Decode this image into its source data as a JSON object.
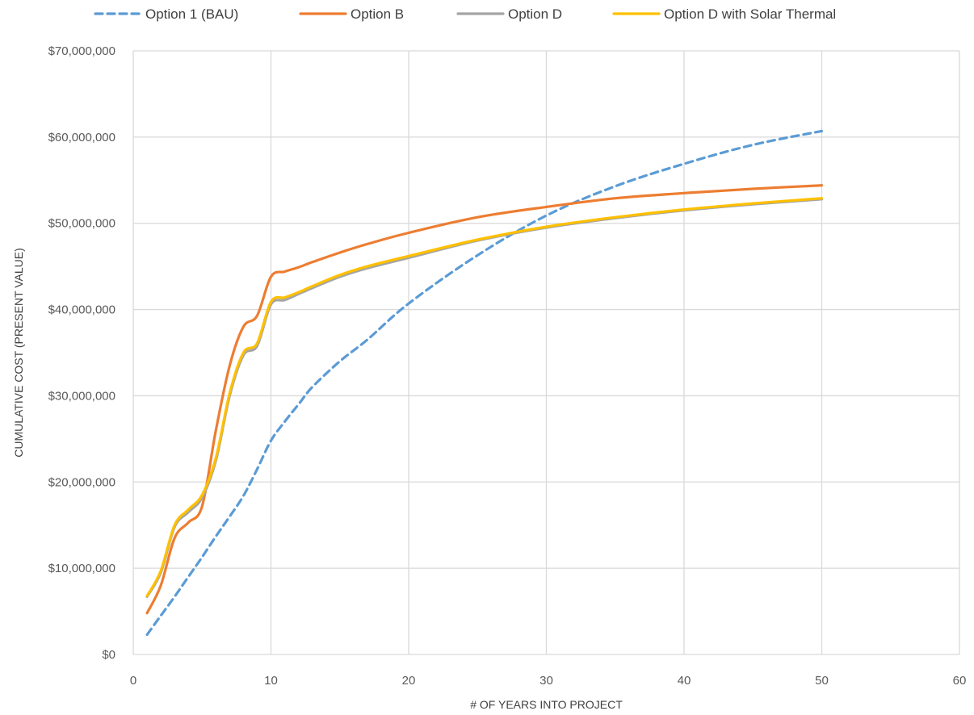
{
  "chart_data": {
    "type": "line",
    "xlabel": "# OF YEARS INTO PROJECT",
    "ylabel": "CUMULATIVE COST (PRESENT VALUE)",
    "xlim": [
      0,
      60
    ],
    "ylim": [
      0,
      70000000
    ],
    "x_ticks": [
      0,
      10,
      20,
      30,
      40,
      50,
      60
    ],
    "x_tick_labels": [
      "0",
      "10",
      "20",
      "30",
      "40",
      "50",
      "60"
    ],
    "y_ticks": [
      0,
      10000000,
      20000000,
      30000000,
      40000000,
      50000000,
      60000000,
      70000000
    ],
    "y_tick_labels": [
      "$0",
      "$10,000,000",
      "$20,000,000",
      "$30,000,000",
      "$40,000,000",
      "$50,000,000",
      "$60,000,000",
      "$70,000,000"
    ],
    "grid": "both",
    "legend_position": "top",
    "series": [
      {
        "name": "Option 1 (BAU)",
        "color": "#5b9bd5",
        "dash": true,
        "x": [
          1,
          2,
          3,
          4,
          5,
          6,
          7,
          8,
          9,
          10,
          11,
          12,
          13,
          15,
          17,
          20,
          25,
          30,
          35,
          40,
          45,
          50
        ],
        "y": [
          2300000,
          4500000,
          6700000,
          9000000,
          11300000,
          13700000,
          16000000,
          18400000,
          21500000,
          24800000,
          27000000,
          29000000,
          31000000,
          34000000,
          36500000,
          40700000,
          46300000,
          50900000,
          54300000,
          56900000,
          59100000,
          60700000
        ]
      },
      {
        "name": "Option B",
        "color": "#ed7d31",
        "dash": false,
        "x": [
          1,
          2,
          3,
          4,
          5,
          6,
          7,
          8,
          9,
          10,
          11,
          12,
          13,
          15,
          17,
          20,
          25,
          30,
          35,
          40,
          45,
          50
        ],
        "y": [
          4800000,
          8000000,
          13500000,
          15300000,
          17200000,
          26000000,
          33500000,
          38000000,
          39300000,
          43800000,
          44400000,
          44900000,
          45500000,
          46600000,
          47600000,
          48900000,
          50700000,
          51900000,
          52900000,
          53500000,
          54000000,
          54400000
        ]
      },
      {
        "name": "Option D",
        "color": "#a5a5a5",
        "dash": false,
        "x": [
          1,
          2,
          3,
          4,
          5,
          6,
          7,
          8,
          9,
          10,
          11,
          12,
          13,
          15,
          17,
          20,
          25,
          30,
          35,
          40,
          45,
          50
        ],
        "y": [
          6700000,
          9500000,
          14800000,
          16500000,
          18200000,
          22500000,
          30000000,
          34700000,
          35800000,
          40600000,
          41100000,
          41800000,
          42500000,
          43800000,
          44800000,
          46000000,
          48000000,
          49500000,
          50600000,
          51500000,
          52200000,
          52800000
        ]
      },
      {
        "name": "Option D with Solar Thermal",
        "color": "#ffc000",
        "dash": false,
        "x": [
          1,
          2,
          3,
          4,
          5,
          6,
          7,
          8,
          9,
          10,
          11,
          12,
          13,
          15,
          17,
          20,
          25,
          30,
          35,
          40,
          45,
          50
        ],
        "y": [
          6800000,
          9700000,
          15000000,
          16800000,
          18500000,
          22800000,
          30300000,
          35000000,
          36100000,
          40900000,
          41400000,
          42000000,
          42700000,
          44000000,
          45000000,
          46200000,
          48100000,
          49600000,
          50700000,
          51600000,
          52300000,
          52900000
        ]
      }
    ]
  }
}
